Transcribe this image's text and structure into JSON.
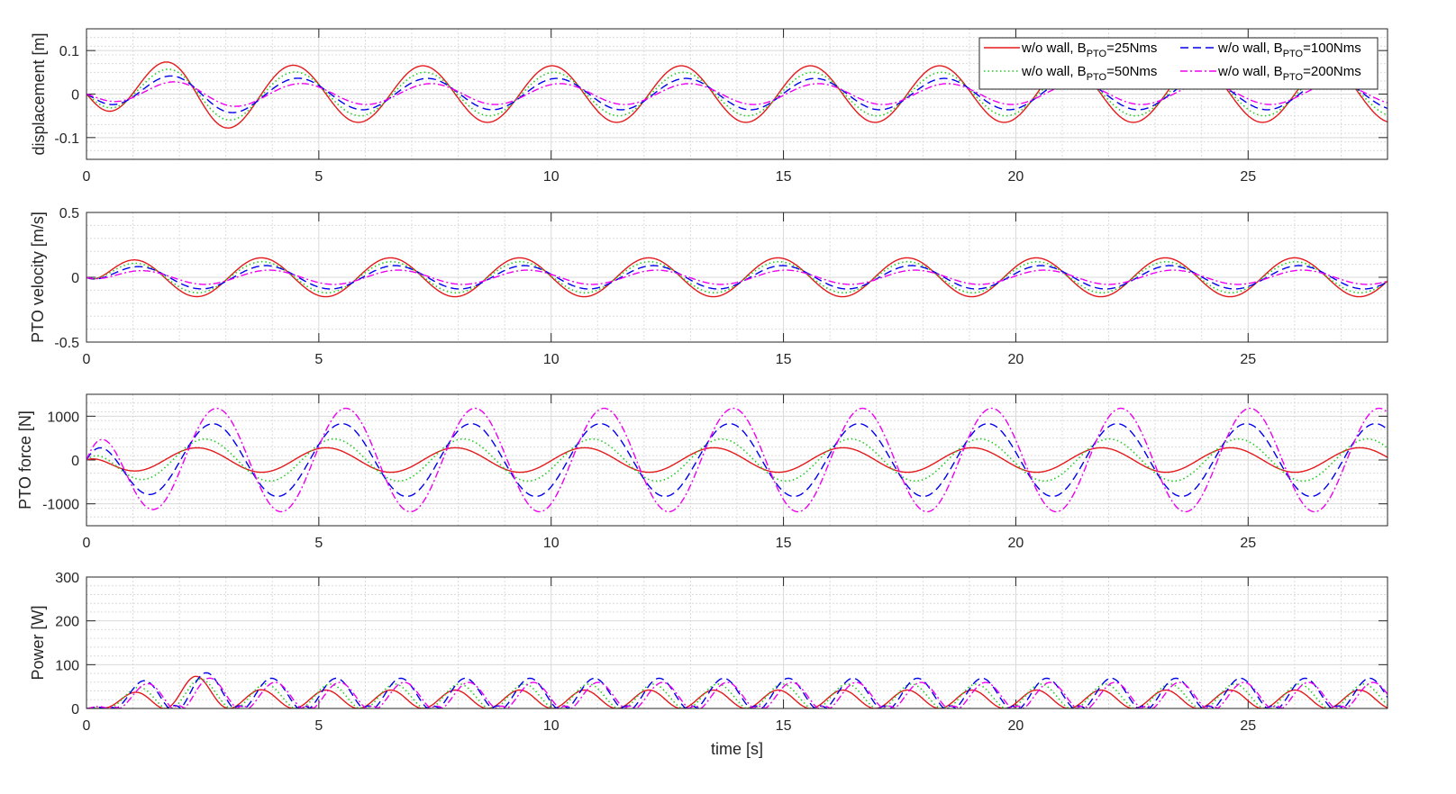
{
  "chart_data": [
    {
      "type": "line",
      "ylabel": "displacement [m]",
      "xlabel": "",
      "xlim": [
        0,
        28
      ],
      "xticks": [
        0,
        5,
        10,
        15,
        20,
        25
      ],
      "xminor_step": 1,
      "ylim": [
        -0.15,
        0.15
      ],
      "yticks": [
        -0.1,
        0,
        0.1
      ],
      "ytick_labels": [
        "-0.1",
        "0",
        "0.1"
      ],
      "yminor_step": 0.02,
      "grid": true,
      "legend": "top-right",
      "model": "amplitude * cos(2*pi*(t - peak_time)/period), ramped from 0 at t=0",
      "series": [
        {
          "name": "w/o wall, B_PTO=25Nms",
          "amplitude": 0.065,
          "period": 2.78,
          "peak_time": 1.68
        },
        {
          "name": "w/o wall, B_PTO=50Nms",
          "amplitude": 0.05,
          "period": 2.78,
          "peak_time": 1.72
        },
        {
          "name": "w/o wall, B_PTO=100Nms",
          "amplitude": 0.036,
          "period": 2.78,
          "peak_time": 1.78
        },
        {
          "name": "w/o wall, B_PTO=200Nms",
          "amplitude": 0.024,
          "period": 2.78,
          "peak_time": 1.85
        }
      ]
    },
    {
      "type": "line",
      "ylabel": "PTO velocity [m/s]",
      "xlabel": "",
      "xlim": [
        0,
        28
      ],
      "xticks": [
        0,
        5,
        10,
        15,
        20,
        25
      ],
      "xminor_step": 1,
      "ylim": [
        -0.5,
        0.5
      ],
      "yticks": [
        -0.5,
        0,
        0.5
      ],
      "ytick_labels": [
        "-0.5",
        "0",
        "0.5"
      ],
      "yminor_step": 0.1,
      "grid": true,
      "series": [
        {
          "name": "w/o wall, B_PTO=25Nms",
          "amplitude": 0.15,
          "period": 2.78,
          "peak_time": 0.98
        },
        {
          "name": "w/o wall, B_PTO=50Nms",
          "amplitude": 0.12,
          "period": 2.78,
          "peak_time": 1.0
        },
        {
          "name": "w/o wall, B_PTO=100Nms",
          "amplitude": 0.09,
          "period": 2.78,
          "peak_time": 1.08
        },
        {
          "name": "w/o wall, B_PTO=200Nms",
          "amplitude": 0.055,
          "period": 2.78,
          "peak_time": 1.15
        }
      ]
    },
    {
      "type": "line",
      "ylabel": "PTO force [N]",
      "xlabel": "",
      "xlim": [
        0,
        28
      ],
      "xticks": [
        0,
        5,
        10,
        15,
        20,
        25
      ],
      "xminor_step": 1,
      "ylim": [
        -1500,
        1500
      ],
      "yticks": [
        -1000,
        0,
        1000
      ],
      "ytick_labels": [
        "-1000",
        "0",
        "1000"
      ],
      "yminor_step": 200,
      "grid": true,
      "series": [
        {
          "name": "w/o wall, B_PTO=25Nms",
          "amplitude": 280,
          "period": 2.78,
          "peak_time": 2.38
        },
        {
          "name": "w/o wall, B_PTO=50Nms",
          "amplitude": 480,
          "period": 2.78,
          "peak_time": 2.55
        },
        {
          "name": "w/o wall, B_PTO=100Nms",
          "amplitude": 830,
          "period": 2.78,
          "peak_time": 2.72
        },
        {
          "name": "w/o wall, B_PTO=200Nms",
          "amplitude": 1180,
          "period": 2.78,
          "peak_time": 2.8
        }
      ]
    },
    {
      "type": "line",
      "ylabel": "Power [W]",
      "xlabel": "time [s]",
      "xlim": [
        0,
        28
      ],
      "xticks": [
        0,
        5,
        10,
        15,
        20,
        25
      ],
      "xminor_step": 1,
      "ylim": [
        0,
        300
      ],
      "yticks": [
        0,
        100,
        200,
        300
      ],
      "ytick_labels": [
        "0",
        "100",
        "200",
        "300"
      ],
      "yminor_step": 20,
      "grid": true,
      "model": "|PTO force * PTO velocity|",
      "series": [
        {
          "name": "w/o wall, B_PTO=25Nms",
          "steady_peak": 45
        },
        {
          "name": "w/o wall, B_PTO=50Nms",
          "steady_peak": 55
        },
        {
          "name": "w/o wall, B_PTO=100Nms",
          "steady_peak": 65
        },
        {
          "name": "w/o wall, B_PTO=200Nms",
          "steady_peak": 50
        }
      ]
    }
  ],
  "legend": {
    "entries": [
      {
        "prefix": "w/o wall, B",
        "sub": "PTO",
        "suffix": "=25Nms"
      },
      {
        "prefix": "w/o wall, B",
        "sub": "PTO",
        "suffix": "=100Nms"
      },
      {
        "prefix": "w/o wall, B",
        "sub": "PTO",
        "suffix": "=50Nms"
      },
      {
        "prefix": "w/o wall, B",
        "sub": "PTO",
        "suffix": "=200Nms"
      }
    ]
  },
  "styles": {
    "colors": [
      "#e31a1c",
      "#22cc22",
      "#0000ee",
      "#ee00ee"
    ],
    "dashes": [
      "",
      "1.5,3",
      "9,5",
      "8,3,2,3"
    ]
  }
}
